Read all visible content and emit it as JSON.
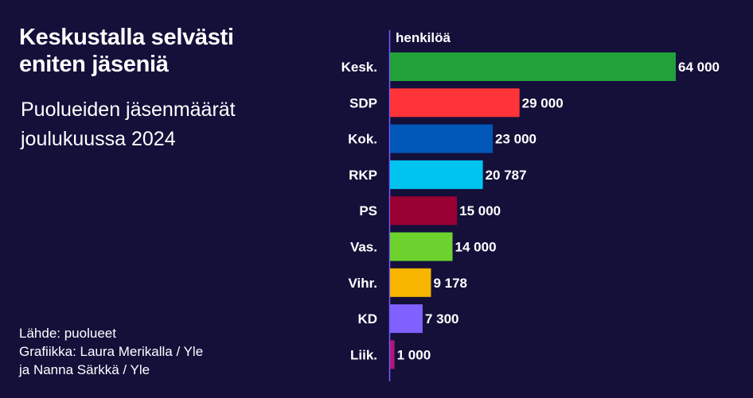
{
  "title": "Keskustalla selvästi eniten jäseniä",
  "subtitle": "Puolueiden jäsenmäärät joulukuussa 2024",
  "source": {
    "line1": "Lähde: puolueet",
    "line2": "Grafiikka: Laura Merikalla / Yle",
    "line3": "ja Nanna Särkkä / Yle"
  },
  "chart_data": {
    "type": "bar",
    "orientation": "horizontal",
    "unit_label": "henkilöä",
    "categories": [
      "Kesk.",
      "SDP",
      "Kok.",
      "RKP",
      "PS",
      "Vas.",
      "Vihr.",
      "KD",
      "Liik."
    ],
    "values": [
      64000,
      29000,
      23000,
      20787,
      15000,
      14000,
      9178,
      7300,
      1000
    ],
    "value_labels": [
      "64 000",
      "29 000",
      "23 000",
      "20 787",
      "15 000",
      "14 000",
      "9 178",
      "7 300",
      "1 000"
    ],
    "colors": [
      "#22a03a",
      "#ff3338",
      "#0057b8",
      "#00c4f0",
      "#990033",
      "#6dd22e",
      "#f7b500",
      "#8060ff",
      "#b0177a"
    ],
    "xlim": [
      0,
      64000
    ],
    "grid": false,
    "legend": "none"
  }
}
